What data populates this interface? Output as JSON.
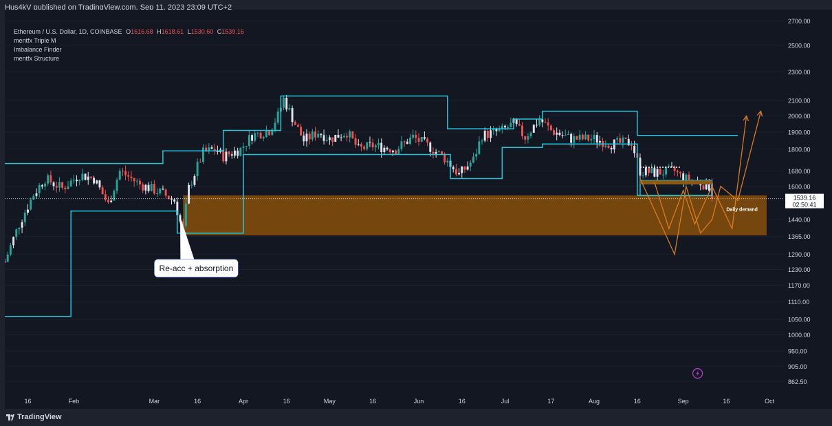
{
  "header": {
    "published": "Hus4kV published on TradingView.com, Sep 11, 2023 23:09 UTC+2"
  },
  "legend": {
    "symbol": "Ethereum / U.S. Dollar, 1D, COINBASE",
    "open_label": "O",
    "open": "1616.68",
    "high_label": "H",
    "high": "1618.61",
    "low_label": "L",
    "low": "1530.60",
    "close_label": "C",
    "close": "1539.16",
    "indicators": [
      "mentfx Triple M",
      "Imbalance Finder",
      "mentfx Structure"
    ]
  },
  "footer": {
    "brand": "TradingView",
    "logo_icon": "tradingview-logo-icon"
  },
  "colors": {
    "background": "#131722",
    "chrome": "#1e222d",
    "text": "#d1d4dc",
    "up": "#26a69a",
    "down": "#ef5350",
    "neutral": "#e0e3eb",
    "structure": "#26c6da",
    "demand": "#7a4a0f",
    "projection": "#d97b1e",
    "price_label_bg": "#ffffff"
  },
  "chart_data": {
    "type": "candlestick",
    "title": "Ethereum / U.S. Dollar, 1D, COINBASE",
    "xlabel": "",
    "ylabel": "",
    "y_ticks": [
      "2700.00",
      "2500.00",
      "2300.00",
      "2100.00",
      "2000.00",
      "1900.00",
      "1800.00",
      "1680.00",
      "1600.00",
      "1440.00",
      "1365.00",
      "1290.00",
      "1230.00",
      "1170.00",
      "1110.00",
      "1050.00",
      "1000.00",
      "950.00",
      "905.00",
      "862.50"
    ],
    "x_ticks": [
      "16",
      "Feb",
      "Mar",
      "16",
      "Apr",
      "16",
      "May",
      "16",
      "Jun",
      "16",
      "Jul",
      "17",
      "Aug",
      "16",
      "Sep",
      "16",
      "Oct"
    ],
    "scale": "log",
    "ylim": [
      830,
      2800
    ],
    "x_range": [
      "2023-01-08",
      "2023-10-06"
    ],
    "candle_range": [
      "2023-01-08",
      "2023-09-11"
    ],
    "price_path": [
      [
        "2023-01-08",
        1260
      ],
      [
        "2023-01-13",
        1420
      ],
      [
        "2023-01-18",
        1560
      ],
      [
        "2023-01-22",
        1640
      ],
      [
        "2023-01-28",
        1590
      ],
      [
        "2023-02-03",
        1660
      ],
      [
        "2023-02-08",
        1640
      ],
      [
        "2023-02-13",
        1510
      ],
      [
        "2023-02-17",
        1680
      ],
      [
        "2023-02-24",
        1610
      ],
      [
        "2023-03-03",
        1570
      ],
      [
        "2023-03-08",
        1530
      ],
      [
        "2023-03-10",
        1430
      ],
      [
        "2023-03-11",
        1400
      ],
      [
        "2023-03-13",
        1590
      ],
      [
        "2023-03-18",
        1780
      ],
      [
        "2023-03-22",
        1800
      ],
      [
        "2023-03-25",
        1760
      ],
      [
        "2023-03-31",
        1800
      ],
      [
        "2023-04-04",
        1880
      ],
      [
        "2023-04-10",
        1910
      ],
      [
        "2023-04-13",
        2000
      ],
      [
        "2023-04-15",
        2110
      ],
      [
        "2023-04-19",
        1950
      ],
      [
        "2023-04-22",
        1850
      ],
      [
        "2023-04-27",
        1900
      ],
      [
        "2023-05-01",
        1860
      ],
      [
        "2023-05-07",
        1900
      ],
      [
        "2023-05-11",
        1800
      ],
      [
        "2023-05-16",
        1820
      ],
      [
        "2023-05-24",
        1800
      ],
      [
        "2023-05-30",
        1870
      ],
      [
        "2023-06-05",
        1810
      ],
      [
        "2023-06-10",
        1750
      ],
      [
        "2023-06-15",
        1660
      ],
      [
        "2023-06-20",
        1740
      ],
      [
        "2023-06-23",
        1880
      ],
      [
        "2023-06-30",
        1910
      ],
      [
        "2023-07-04",
        1950
      ],
      [
        "2023-07-08",
        1870
      ],
      [
        "2023-07-13",
        1980
      ],
      [
        "2023-07-17",
        1910
      ],
      [
        "2023-07-24",
        1860
      ],
      [
        "2023-08-01",
        1860
      ],
      [
        "2023-08-07",
        1830
      ],
      [
        "2023-08-14",
        1840
      ],
      [
        "2023-08-17",
        1680
      ],
      [
        "2023-08-22",
        1670
      ],
      [
        "2023-08-29",
        1680
      ],
      [
        "2023-09-01",
        1640
      ],
      [
        "2023-09-05",
        1630
      ],
      [
        "2023-09-10",
        1600
      ],
      [
        "2023-09-11",
        1539.16
      ]
    ],
    "current_price": {
      "value": "1539.16",
      "countdown": "02:50:41"
    },
    "zones": [
      {
        "name": "demand",
        "label": "Daily demand",
        "from": "2023-03-11",
        "to": "2023-09-30",
        "low": 1370,
        "high": 1555
      }
    ],
    "structure_line": [
      [
        "2023-01-08",
        1060
      ],
      [
        "2023-01-31",
        1060
      ],
      [
        "2023-01-31",
        1480
      ],
      [
        "2023-03-09",
        1480
      ],
      [
        "2023-03-09",
        1380
      ],
      [
        "2023-04-01",
        1380
      ],
      [
        "2023-04-01",
        1770
      ],
      [
        "2023-06-12",
        1770
      ],
      [
        "2023-06-12",
        1640
      ],
      [
        "2023-06-30",
        1640
      ],
      [
        "2023-06-30",
        1810
      ],
      [
        "2023-07-14",
        1810
      ],
      [
        "2023-07-14",
        1830
      ],
      [
        "2023-08-16",
        1830
      ],
      [
        "2023-08-16",
        1555
      ],
      [
        "2023-09-11",
        1555
      ]
    ],
    "structure_upper": [
      [
        "2023-01-08",
        1720
      ],
      [
        "2023-03-04",
        1720
      ],
      [
        "2023-03-04",
        1760
      ],
      [
        "2023-03-04",
        1790
      ],
      [
        "2023-03-25",
        1790
      ],
      [
        "2023-03-25",
        1910
      ],
      [
        "2023-04-14",
        1910
      ],
      [
        "2023-04-14",
        2130
      ],
      [
        "2023-06-11",
        2130
      ],
      [
        "2023-06-11",
        1920
      ],
      [
        "2023-07-04",
        1920
      ],
      [
        "2023-07-04",
        1980
      ],
      [
        "2023-07-14",
        1980
      ],
      [
        "2023-07-14",
        2030
      ],
      [
        "2023-08-16",
        2030
      ],
      [
        "2023-08-16",
        1880
      ],
      [
        "2023-09-20",
        1880
      ]
    ],
    "range_box": {
      "from": "2023-08-17",
      "to": "2023-09-11",
      "low": 1555,
      "high": 1630,
      "dotted_top": 1700,
      "dotted_top_to": "2023-08-31"
    },
    "projection_paths": [
      [
        [
          "2023-08-17",
          1640
        ],
        [
          "2023-08-29",
          1290
        ],
        [
          "2023-09-02",
          1600
        ],
        [
          "2023-09-07",
          1380
        ],
        [
          "2023-09-11",
          1440
        ],
        [
          "2023-09-14",
          1600
        ],
        [
          "2023-09-20",
          1530
        ],
        [
          "2023-09-28",
          2030
        ]
      ],
      [
        [
          "2023-08-22",
          1620
        ],
        [
          "2023-08-27",
          1400
        ],
        [
          "2023-09-01",
          1580
        ],
        [
          "2023-09-05",
          1420
        ],
        [
          "2023-09-11",
          1600
        ],
        [
          "2023-09-18",
          1400
        ],
        [
          "2023-09-23",
          2000
        ]
      ]
    ],
    "annotations": [
      {
        "text": "Re-acc + absorption",
        "date": "2023-03-10",
        "price": 1455,
        "box_date": "2023-03-01",
        "box_price": 1270
      },
      {
        "text": "Daily demand",
        "date": "2023-09-16",
        "price": 1480
      }
    ],
    "markers": [
      {
        "name": "lightning-icon",
        "date": "2023-09-06",
        "price": 885
      }
    ]
  }
}
